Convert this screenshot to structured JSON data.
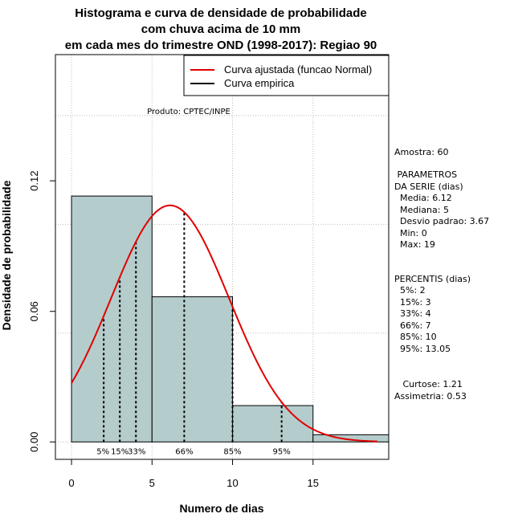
{
  "chart_data": {
    "type": "histogram",
    "title_lines": [
      "Histograma e curva de densidade de probabilidade",
      "com chuva acima de 10 mm",
      "em cada mes do trimestre OND (1998-2017): Regiao 90"
    ],
    "xlabel": "Numero de dias",
    "ylabel": "Densidade de probabilidade",
    "xlim": [
      -1,
      19.7
    ],
    "ylim": [
      -0.008,
      0.178
    ],
    "x_ticks": [
      0,
      5,
      10,
      15
    ],
    "y_ticks": [
      0.0,
      0.06,
      0.12
    ],
    "y_tick_labels": [
      "0.00",
      "0.06",
      "0.12"
    ],
    "grid": true,
    "bins": [
      {
        "start": 0,
        "end": 5,
        "density": 0.113
      },
      {
        "start": 5,
        "end": 10,
        "density": 0.0667
      },
      {
        "start": 10,
        "end": 15,
        "density": 0.0167
      },
      {
        "start": 15,
        "end": 20,
        "density": 0.0033
      }
    ],
    "bar_color": "#b5cccc",
    "curve_color": "#e00000",
    "normal_fit": {
      "mean": 6.12,
      "sd": 3.67,
      "x_start": 0,
      "x_end": 19
    },
    "percentiles": [
      {
        "label": "5%",
        "x": 2
      },
      {
        "label": "15%",
        "x": 3
      },
      {
        "label": "33%",
        "x": 4
      },
      {
        "label": "66%",
        "x": 7
      },
      {
        "label": "85%",
        "x": 10
      },
      {
        "label": "95%",
        "x": 13.05
      }
    ],
    "legend": [
      {
        "label": "Curva ajustada (funcao Normal)",
        "color": "#e00000"
      },
      {
        "label": "Curva empirica",
        "color": "#000000"
      }
    ],
    "legend_position": "top-right",
    "annotation": "Produto: CPTEC/INPE"
  },
  "side_panel": {
    "amostra": "Amostra: 60",
    "params_title_1": " PARAMETROS",
    "params_title_2": "DA SERIE (dias)",
    "media": "  Media: 6.12",
    "mediana": "  Mediana: 5",
    "desvio": "  Desvio padrao: 3.67",
    "min": "  Min: 0",
    "max": "  Max: 19",
    "percentis_title": "PERCENTIS (dias)",
    "p5": "  5%: 2",
    "p15": "  15%: 3",
    "p33": "  33%: 4",
    "p66": "  66%: 7",
    "p85": "  85%: 10",
    "p95": "  95%: 13.05",
    "curtose": "   Curtose: 1.21",
    "assimetria": "Assimetria: 0.53"
  }
}
